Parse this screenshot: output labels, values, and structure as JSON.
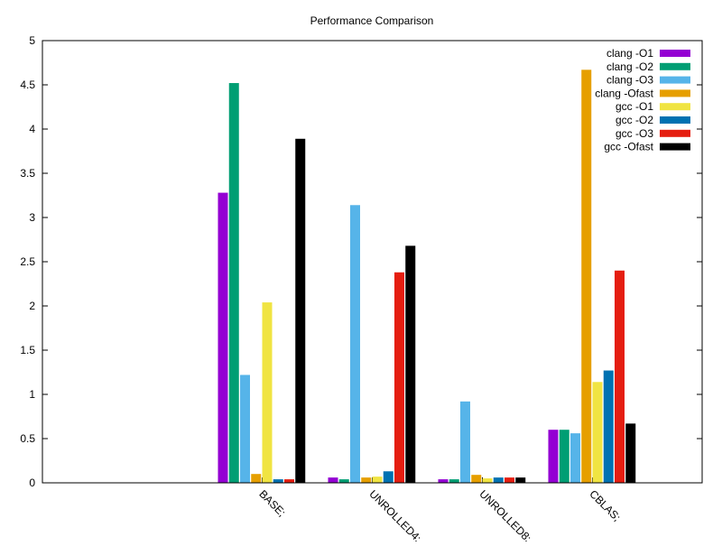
{
  "chart_data": {
    "type": "bar",
    "title": "Performance Comparison",
    "xlabel": "",
    "ylabel": "",
    "ylim": [
      0,
      5
    ],
    "yticks": [
      "0",
      "0.5",
      "1",
      "1.5",
      "2",
      "2.5",
      "3",
      "3.5",
      "4",
      "4.5",
      "5"
    ],
    "categories": [
      "BASE;",
      "UNROLLED4;",
      "UNROLLED8;",
      "CBLAS;"
    ],
    "legend_position": "top-right",
    "series": [
      {
        "name": "clang -O1",
        "color": "#9400d3",
        "values": [
          3.28,
          0.06,
          0.04,
          0.6
        ]
      },
      {
        "name": "clang -O2",
        "color": "#009e73",
        "values": [
          4.52,
          0.04,
          0.04,
          0.6
        ]
      },
      {
        "name": "clang -O3",
        "color": "#56b4e9",
        "values": [
          1.22,
          3.14,
          0.92,
          0.56
        ]
      },
      {
        "name": "clang -Ofast",
        "color": "#e69f00",
        "values": [
          0.1,
          0.06,
          0.09,
          4.67
        ]
      },
      {
        "name": "gcc -O1",
        "color": "#f0e442",
        "values": [
          2.04,
          0.07,
          0.05,
          1.14
        ]
      },
      {
        "name": "gcc -O2",
        "color": "#0072b2",
        "values": [
          0.04,
          0.13,
          0.06,
          1.27
        ]
      },
      {
        "name": "gcc -O3",
        "color": "#e51e10",
        "values": [
          0.04,
          2.38,
          0.06,
          2.4
        ]
      },
      {
        "name": "gcc -Ofast",
        "color": "#000000",
        "values": [
          3.89,
          2.68,
          0.06,
          0.67
        ]
      }
    ]
  }
}
